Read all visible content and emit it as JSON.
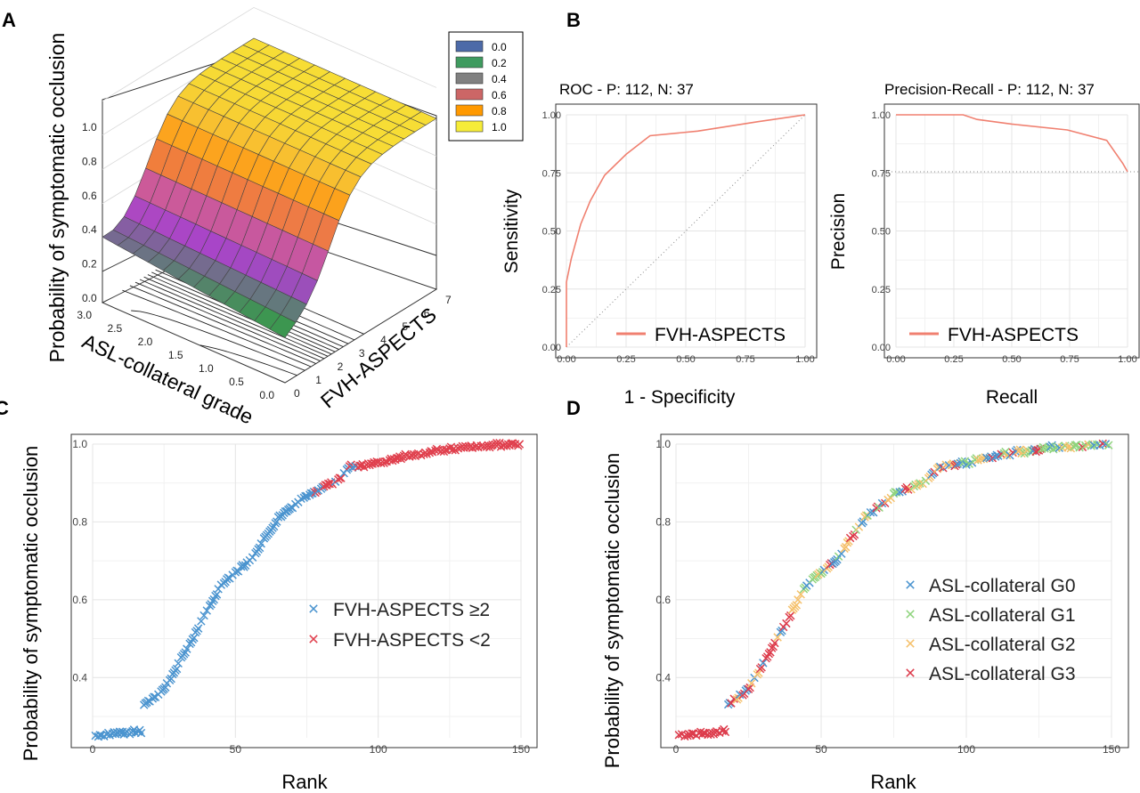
{
  "panels": {
    "A": "A",
    "B": "B",
    "C": "C",
    "D": "D"
  },
  "chart_data": [
    {
      "panel": "A",
      "type": "surface3d",
      "zlabel": "Probability of symptomatic occlusion",
      "xlabel": "ASL-collateral grade",
      "ylabel": "FVH-ASPECTS",
      "x_ticks": [
        "0.0",
        "0.5",
        "1.0",
        "1.5",
        "2.0",
        "2.5",
        "3.0"
      ],
      "y_ticks": [
        "0",
        "1",
        "2",
        "3",
        "4",
        "5",
        "6",
        "7"
      ],
      "z_ticks": [
        "0.0",
        "0.2",
        "0.4",
        "0.6",
        "0.8",
        "1.0"
      ],
      "xlim": [
        0,
        3
      ],
      "ylim": [
        0,
        7
      ],
      "zlim": [
        0,
        1
      ],
      "legend": [
        "0.0",
        "0.2",
        "0.4",
        "0.6",
        "0.8",
        "1.0"
      ],
      "legend_colors": [
        "#4d6aa8",
        "#3f9b5f",
        "#808080",
        "#cc6666",
        "#ff9900",
        "#f6ec38"
      ],
      "legend_position": "top-right"
    },
    {
      "panel": "B-left",
      "type": "line",
      "title": "ROC - P: 112, N: 37",
      "xlabel": "1 - Specificity",
      "ylabel": "Sensitivity",
      "xlim": [
        0,
        1
      ],
      "ylim": [
        0,
        1
      ],
      "x_ticks": [
        "0.00",
        "0.25",
        "0.50",
        "0.75",
        "1.00"
      ],
      "y_ticks": [
        "0.00",
        "0.25",
        "0.50",
        "0.75",
        "1.00"
      ],
      "series": [
        {
          "name": "FVH-ASPECTS",
          "color": "#f08070",
          "x": [
            0.0,
            0.0,
            0.02,
            0.06,
            0.1,
            0.16,
            0.25,
            0.35,
            0.55,
            0.8,
            1.0
          ],
          "y": [
            0.0,
            0.28,
            0.38,
            0.53,
            0.63,
            0.74,
            0.83,
            0.91,
            0.93,
            0.97,
            1.0
          ]
        }
      ],
      "reference_line": {
        "x": [
          0,
          1
        ],
        "y": [
          0,
          1
        ]
      },
      "legend_position": "bottom-right",
      "grid": true
    },
    {
      "panel": "B-right",
      "type": "line",
      "title": "Precision-Recall - P: 112, N: 37",
      "xlabel": "Recall",
      "ylabel": "Precision",
      "xlim": [
        0,
        1
      ],
      "ylim": [
        0,
        1
      ],
      "x_ticks": [
        "0.00",
        "0.25",
        "0.50",
        "0.75",
        "1.00"
      ],
      "y_ticks": [
        "0.00",
        "0.25",
        "0.50",
        "0.75",
        "1.00"
      ],
      "series": [
        {
          "name": "FVH-ASPECTS",
          "color": "#f08070",
          "x": [
            0.0,
            0.29,
            0.35,
            0.5,
            0.74,
            0.91,
            0.98,
            1.0
          ],
          "y": [
            1.0,
            1.0,
            0.98,
            0.96,
            0.935,
            0.89,
            0.79,
            0.755
          ]
        }
      ],
      "baseline_y": 0.755,
      "legend_position": "bottom-left",
      "grid": true
    },
    {
      "panel": "C",
      "type": "scatter",
      "xlabel": "Rank",
      "ylabel": "Probability of symptomatic occlusion",
      "xlim": [
        0,
        150
      ],
      "ylim": [
        0.25,
        1.0
      ],
      "x_ticks": [
        "0",
        "50",
        "100",
        "150"
      ],
      "y_ticks": [
        "0.4",
        "0.6",
        "0.8",
        "1.0"
      ],
      "marker": "x",
      "legend_position": "right",
      "curve_knots": {
        "x": [
          0,
          17,
          18,
          25,
          35,
          45,
          55,
          65,
          75,
          85,
          90,
          100,
          110,
          120,
          130,
          140,
          150
        ],
        "y": [
          0.25,
          0.26,
          0.33,
          0.37,
          0.5,
          0.64,
          0.7,
          0.81,
          0.87,
          0.9,
          0.94,
          0.95,
          0.97,
          0.98,
          0.99,
          0.995,
          1.0
        ]
      },
      "series": [
        {
          "name": "FVH-ASPECTS ≥2",
          "color": "#4b94cf",
          "rank_range": [
            1,
            88
          ]
        },
        {
          "name": "FVH-ASPECTS <2",
          "color": "#e0404e",
          "rank_range": [
            78,
            149
          ]
        }
      ],
      "grid": true
    },
    {
      "panel": "D",
      "type": "scatter",
      "xlabel": "Rank",
      "ylabel": "Probability of symptomatic occlusion",
      "xlim": [
        0,
        150
      ],
      "ylim": [
        0.25,
        1.0
      ],
      "x_ticks": [
        "0",
        "50",
        "100",
        "150"
      ],
      "y_ticks": [
        "0.4",
        "0.6",
        "0.8",
        "1.0"
      ],
      "marker": "x",
      "legend_position": "right",
      "series": [
        {
          "name": "ASL-collateral G0",
          "color": "#4b94cf"
        },
        {
          "name": "ASL-collateral G1",
          "color": "#8fd47e"
        },
        {
          "name": "ASL-collateral G2",
          "color": "#f5c06b"
        },
        {
          "name": "ASL-collateral G3",
          "color": "#dd3c4c"
        }
      ],
      "grid": true
    }
  ]
}
